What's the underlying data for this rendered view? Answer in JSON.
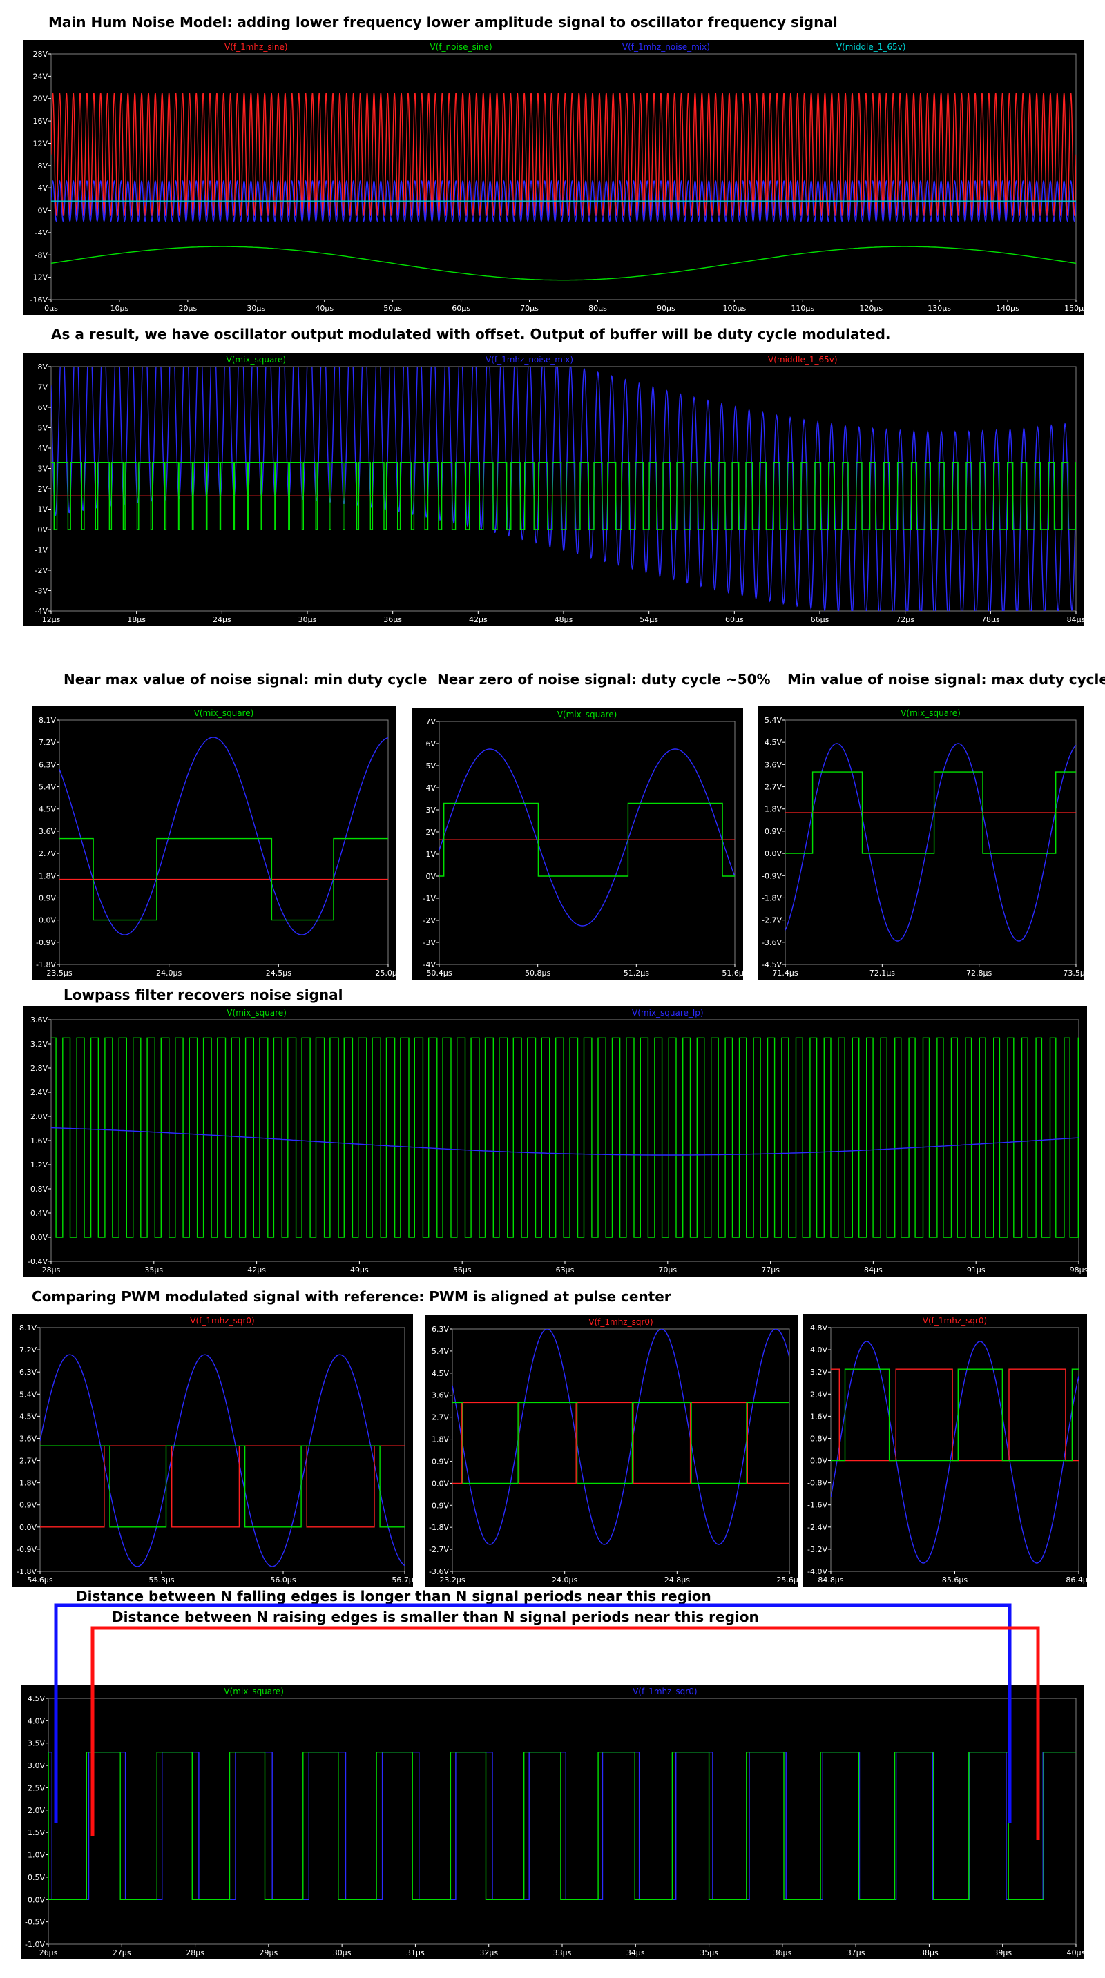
{
  "captions": {
    "c1": "Main Hum Noise Model: adding lower frequency lower amplitude signal to oscillator frequency signal",
    "c2": "As a result, we have oscillator output modulated with offset. Output of buffer will be duty cycle modulated.",
    "c3a": "Near max value of noise signal: min duty cycle",
    "c3b": "Near zero of noise signal: duty cycle ~50%",
    "c3c": "Min value of noise signal: max duty cycle",
    "c4": "Lowpass filter recovers noise signal",
    "c5": "Comparing PWM modulated signal with reference: PWM is aligned at pulse center",
    "c6a": "Distance between N falling edges is longer than N signal periods near this region",
    "c6b": "Distance between N raising edges is smaller than N signal periods near this region"
  },
  "colors": {
    "red": "#ff2020",
    "green": "#00e000",
    "blue": "#2a2aff",
    "cyan": "#00d0d0",
    "grid": "#808080",
    "axis": "#ffffff"
  },
  "chart_data": [
    {
      "id": "p1",
      "type": "line",
      "xlim": [
        0,
        150
      ],
      "ylim": [
        -16,
        28
      ],
      "xticks": [
        "0µs",
        "10µs",
        "20µs",
        "30µs",
        "40µs",
        "50µs",
        "60µs",
        "70µs",
        "80µs",
        "90µs",
        "100µs",
        "110µs",
        "120µs",
        "130µs",
        "140µs",
        "150µs"
      ],
      "yticks": [
        "-16V",
        "-12V",
        "-8V",
        "-4V",
        "0V",
        "4V",
        "8V",
        "12V",
        "16V",
        "20V",
        "24V",
        "28V"
      ],
      "legend": [
        {
          "name": "V(f_1mhz_sine)",
          "color": "red"
        },
        {
          "name": "V(f_noise_sine)",
          "color": "green"
        },
        {
          "name": "V(f_1mhz_noise_mix)",
          "color": "blue"
        },
        {
          "name": "V(middle_1_65v)",
          "color": "cyan"
        }
      ],
      "series": [
        {
          "kind": "sine",
          "color": "red",
          "offset": 10,
          "amp": 11,
          "period": 1,
          "phase": 0
        },
        {
          "kind": "sine",
          "color": "green",
          "offset": -9.5,
          "amp": 3,
          "period": 100,
          "phase": 0
        },
        {
          "kind": "sine",
          "color": "blue",
          "offset": 1.65,
          "amp": 3.6,
          "period": 1,
          "phase": 0
        },
        {
          "kind": "const",
          "color": "cyan",
          "value": 1.65
        }
      ]
    },
    {
      "id": "p2",
      "type": "line",
      "xlim": [
        12,
        84
      ],
      "ylim": [
        -4,
        8
      ],
      "xticks": [
        "12µs",
        "18µs",
        "24µs",
        "30µs",
        "36µs",
        "42µs",
        "48µs",
        "54µs",
        "60µs",
        "66µs",
        "72µs",
        "78µs",
        "84µs"
      ],
      "yticks": [
        "-4V",
        "-3V",
        "-2V",
        "-1V",
        "0V",
        "1V",
        "2V",
        "3V",
        "4V",
        "5V",
        "6V",
        "7V",
        "8V"
      ],
      "legend": [
        {
          "name": "V(mix_square)",
          "color": "green"
        },
        {
          "name": "V(f_1mhz_noise_mix)",
          "color": "blue"
        },
        {
          "name": "V(middle_1_65v)",
          "color": "red"
        }
      ],
      "series": [
        {
          "kind": "const",
          "color": "red",
          "value": 1.65
        },
        {
          "kind": "modsine",
          "color": "blue",
          "amp": 4.6,
          "period": 0.965,
          "base": 3.2,
          "depth": 3.0,
          "nperiod": 100,
          "phase": 0
        },
        {
          "kind": "pwm",
          "color": "green",
          "high": 3.3,
          "low": 0,
          "period": 0.965,
          "threshold": 1.65,
          "amp": 4.6,
          "base": 3.2,
          "depth": 3.0,
          "nperiod": 100,
          "phase": 0
        }
      ]
    },
    {
      "id": "p3a",
      "type": "line",
      "xlim": [
        23.5,
        25.3
      ],
      "ylim": [
        -1.8,
        8.1
      ],
      "xticks": [
        "23.5µs",
        "24.0µs",
        "24.5µs",
        "25.0µs"
      ],
      "yticks": [
        "-1.8V",
        "-0.9V",
        "0.0V",
        "0.9V",
        "1.8V",
        "2.7V",
        "3.6V",
        "4.5V",
        "5.4V",
        "6.3V",
        "7.2V",
        "8.1V"
      ],
      "legend": [
        {
          "name": "V(mix_square)",
          "color": "green"
        }
      ],
      "series": [
        {
          "kind": "const",
          "color": "red",
          "value": 1.65
        },
        {
          "kind": "sine",
          "color": "blue",
          "offset": 3.4,
          "amp": 4.0,
          "period": 0.97,
          "phase": 0.155
        },
        {
          "kind": "pwm",
          "color": "green",
          "high": 3.3,
          "low": 0,
          "period": 0.97,
          "threshold": 1.65,
          "amp": 4.0,
          "base": 3.4,
          "depth": 0,
          "nperiod": 100,
          "phase": 0.155
        }
      ]
    },
    {
      "id": "p3b",
      "type": "line",
      "xlim": [
        50.4,
        51.9
      ],
      "ylim": [
        -4,
        7
      ],
      "xticks": [
        "50.4µs",
        "50.8µs",
        "51.2µs",
        "51.6µs"
      ],
      "yticks": [
        "-4V",
        "-3V",
        "-2V",
        "-1V",
        "0V",
        "1V",
        "2V",
        "3V",
        "4V",
        "5V",
        "6V",
        "7V"
      ],
      "legend": [
        {
          "name": "V(mix_square)",
          "color": "green"
        }
      ],
      "series": [
        {
          "kind": "const",
          "color": "red",
          "value": 1.65
        },
        {
          "kind": "sine",
          "color": "blue",
          "offset": 1.75,
          "amp": 4.0,
          "period": 0.94,
          "phase": 0.36
        },
        {
          "kind": "pwm",
          "color": "green",
          "high": 3.3,
          "low": 0,
          "period": 0.94,
          "threshold": 1.65,
          "amp": 4.0,
          "base": 1.75,
          "depth": 0,
          "nperiod": 100,
          "phase": 0.36
        }
      ]
    },
    {
      "id": "p3c",
      "type": "line",
      "xlim": [
        71.4,
        73.7
      ],
      "ylim": [
        -4.5,
        5.4
      ],
      "xticks": [
        "71.4µs",
        "72.1µs",
        "72.8µs",
        "73.5µs"
      ],
      "yticks": [
        "-4.5V",
        "-3.6V",
        "-2.7V",
        "-1.8V",
        "-0.9V",
        "0.0V",
        "0.9V",
        "1.8V",
        "2.7V",
        "3.6V",
        "4.5V",
        "5.4V"
      ],
      "legend": [
        {
          "name": "V(mix_square)",
          "color": "green"
        }
      ],
      "series": [
        {
          "kind": "const",
          "color": "red",
          "value": 1.65
        },
        {
          "kind": "sine",
          "color": "blue",
          "offset": 0.45,
          "amp": 4.0,
          "period": 0.96,
          "phase": 0.45
        },
        {
          "kind": "pwm",
          "color": "green",
          "high": 3.3,
          "low": 0,
          "period": 0.96,
          "threshold": 1.65,
          "amp": 4.0,
          "base": 0.45,
          "depth": 0,
          "nperiod": 100,
          "phase": 0.45
        }
      ]
    },
    {
      "id": "p4",
      "type": "line",
      "xlim": [
        28,
        98
      ],
      "ylim": [
        -0.4,
        3.6
      ],
      "xticks": [
        "28µs",
        "35µs",
        "42µs",
        "49µs",
        "56µs",
        "63µs",
        "70µs",
        "77µs",
        "84µs",
        "91µs",
        "98µs"
      ],
      "yticks": [
        "-0.4V",
        "0.0V",
        "0.4V",
        "0.8V",
        "1.2V",
        "1.6V",
        "2.0V",
        "2.4V",
        "2.8V",
        "3.2V",
        "3.6V"
      ],
      "legend": [
        {
          "name": "V(mix_square)",
          "color": "green"
        },
        {
          "name": "V(mix_square_lp)",
          "color": "blue"
        }
      ],
      "series": [
        {
          "kind": "pwm",
          "color": "green",
          "high": 3.3,
          "low": 0,
          "period": 0.96,
          "threshold": 1.65,
          "amp": 4.4,
          "base": 1.65,
          "depth": 1.2,
          "nperiod": 100,
          "phase": 0,
          "tshift": -25
        },
        {
          "kind": "sine",
          "color": "blue",
          "offset": 1.6,
          "amp": 0.24,
          "period": 100,
          "phase": 0.05
        }
      ]
    },
    {
      "id": "p5a",
      "type": "line",
      "xlim": [
        54.6,
        57.3
      ],
      "ylim": [
        -1.8,
        8.1
      ],
      "xticks": [
        "54.6µs",
        "55.3µs",
        "56.0µs",
        "56.7µs"
      ],
      "yticks": [
        "-1.8V",
        "-0.9V",
        "0.0V",
        "0.9V",
        "1.8V",
        "2.7V",
        "3.6V",
        "4.5V",
        "5.4V",
        "6.3V",
        "7.2V",
        "8.1V"
      ],
      "legend": [
        {
          "name": "V(f_1mhz_sqr0)",
          "color": "red"
        }
      ],
      "series": [
        {
          "kind": "sine",
          "color": "blue",
          "offset": 2.7,
          "amp": 4.3,
          "period": 1.0,
          "phase": 0.43
        },
        {
          "kind": "square",
          "color": "red",
          "high": 3.3,
          "low": 0,
          "period": 1.0,
          "duty": 0.5,
          "phase": 0.93
        },
        {
          "kind": "pwm",
          "color": "green",
          "high": 3.3,
          "low": 0,
          "period": 1.0,
          "threshold": 1.65,
          "amp": 4.3,
          "base": 2.7,
          "depth": 0,
          "nperiod": 100,
          "phase": 0.43
        }
      ]
    },
    {
      "id": "p5b",
      "type": "line",
      "xlim": [
        23.2,
        26.0
      ],
      "ylim": [
        -3.6,
        6.3
      ],
      "xticks": [
        "23.2µs",
        "24.0µs",
        "24.8µs",
        "25.6µs"
      ],
      "yticks": [
        "-3.6V",
        "-2.7V",
        "-1.8V",
        "-0.9V",
        "0.0V",
        "0.9V",
        "1.8V",
        "2.7V",
        "3.6V",
        "4.5V",
        "5.4V",
        "6.3V"
      ],
      "legend": [
        {
          "name": "V(f_1mhz_sqr0)",
          "color": "red"
        }
      ],
      "series": [
        {
          "kind": "sine",
          "color": "blue",
          "offset": 1.9,
          "amp": 4.4,
          "period": 0.95,
          "phase": 0.0
        },
        {
          "kind": "square",
          "color": "red",
          "high": 3.3,
          "low": 0,
          "period": 0.95,
          "duty": 0.5,
          "phase": 0.5
        },
        {
          "kind": "pwm",
          "color": "green",
          "high": 3.3,
          "low": 0,
          "period": 0.95,
          "threshold": 1.65,
          "amp": 4.4,
          "base": 1.9,
          "depth": 0,
          "nperiod": 100,
          "phase": 0.0
        }
      ]
    },
    {
      "id": "p5c",
      "type": "line",
      "xlim": [
        84.8,
        86.9
      ],
      "ylim": [
        -4.0,
        4.8
      ],
      "xticks": [
        "84.8µs",
        "85.6µs",
        "86.4µs"
      ],
      "yticks": [
        "-4.0V",
        "-3.2V",
        "-2.4V",
        "-1.6V",
        "-0.8V",
        "0.0V",
        "0.8V",
        "1.6V",
        "2.4V",
        "3.2V",
        "4.0V",
        "4.8V"
      ],
      "legend": [
        {
          "name": "V(f_1mhz_sqr0)",
          "color": "red"
        }
      ],
      "series": [
        {
          "kind": "sine",
          "color": "blue",
          "offset": 0.3,
          "amp": 4.0,
          "period": 0.96,
          "phase": 0.6
        },
        {
          "kind": "square",
          "color": "red",
          "high": 3.3,
          "low": 0,
          "period": 0.96,
          "duty": 0.5,
          "phase": 0.1
        },
        {
          "kind": "pwm",
          "color": "green",
          "high": 3.3,
          "low": 0,
          "period": 0.96,
          "threshold": 1.65,
          "amp": 4.0,
          "base": 0.3,
          "depth": 0,
          "nperiod": 100,
          "phase": 0.6
        }
      ]
    },
    {
      "id": "p6",
      "type": "line",
      "xlim": [
        26,
        40
      ],
      "ylim": [
        -1.0,
        4.5
      ],
      "xticks": [
        "26µs",
        "27µs",
        "28µs",
        "29µs",
        "30µs",
        "31µs",
        "32µs",
        "33µs",
        "34µs",
        "35µs",
        "36µs",
        "37µs",
        "38µs",
        "39µs",
        "40µs"
      ],
      "yticks": [
        "-1.0V",
        "-0.5V",
        "0.0V",
        "0.5V",
        "1.0V",
        "1.5V",
        "2.0V",
        "2.5V",
        "3.0V",
        "3.5V",
        "4.0V",
        "4.5V"
      ],
      "legend": [
        {
          "name": "V(mix_square)",
          "color": "green"
        },
        {
          "name": "V(f_1mhz_sqr0)",
          "color": "blue"
        }
      ],
      "series": [
        {
          "kind": "square",
          "color": "blue",
          "high": 3.3,
          "low": 0,
          "period": 1.0,
          "duty": 0.5,
          "phase": 0.45
        },
        {
          "kind": "edges",
          "color": "green",
          "high": 3.3,
          "low": 0,
          "rises": [
            26.52,
            27.48,
            28.47,
            29.47,
            30.47,
            31.48,
            32.48,
            33.49,
            34.5,
            35.51,
            36.52,
            37.53,
            38.54,
            39.56
          ],
          "falls": [
            26.0,
            26.98,
            27.96,
            28.95,
            29.95,
            30.96,
            31.96,
            32.98,
            33.99,
            35.0,
            36.02,
            37.04,
            38.06,
            39.08
          ]
        }
      ]
    }
  ]
}
